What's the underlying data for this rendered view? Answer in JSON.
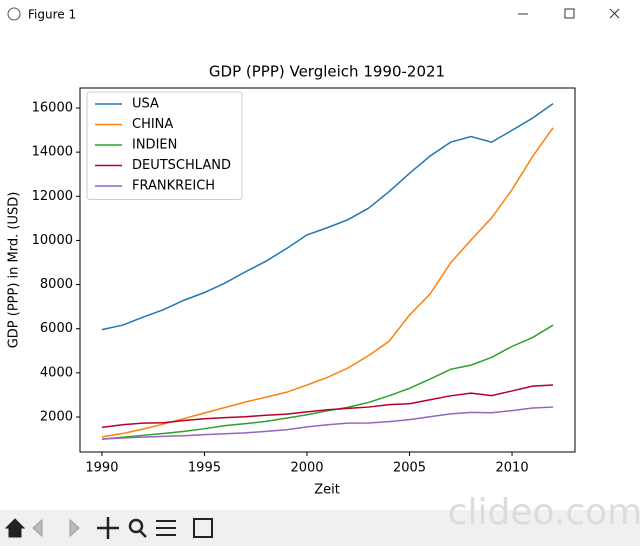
{
  "window": {
    "title": "Figure 1"
  },
  "watermark": "clideo.com",
  "chart_data": {
    "type": "line",
    "title": "GDP (PPP) Vergleich 1990-2021",
    "x_label": "Zeit",
    "y_label": "GDP (PPP) in Mrd. (USD)",
    "x": [
      1990,
      1991,
      1992,
      1993,
      1994,
      1995,
      1996,
      1997,
      1998,
      1999,
      2000,
      2001,
      2002,
      2003,
      2004,
      2005,
      2006,
      2007,
      2008,
      2009,
      2010,
      2011,
      2012
    ],
    "series": [
      {
        "name": "USA",
        "color": "#1f77b4",
        "values": [
          5960,
          6160,
          6520,
          6860,
          7290,
          7640,
          8070,
          8580,
          9060,
          9630,
          10250,
          10580,
          10940,
          11460,
          12210,
          13040,
          13820,
          14450,
          14710,
          14450,
          14990,
          15540,
          16200
        ]
      },
      {
        "name": "CHINA",
        "color": "#ff7f0e",
        "values": [
          1100,
          1250,
          1450,
          1680,
          1930,
          2180,
          2430,
          2680,
          2900,
          3120,
          3450,
          3800,
          4220,
          4780,
          5430,
          6620,
          7570,
          8980,
          10020,
          11020,
          12300,
          13800,
          15100
        ]
      },
      {
        "name": "INDIEN",
        "color": "#2ca02c",
        "values": [
          1000,
          1080,
          1170,
          1250,
          1350,
          1470,
          1610,
          1700,
          1800,
          1950,
          2100,
          2280,
          2440,
          2660,
          2960,
          3300,
          3720,
          4160,
          4350,
          4700,
          5200,
          5600,
          6160
        ]
      },
      {
        "name": "DEUTSCHLAND",
        "color": "#b8002a",
        "values": [
          1530,
          1650,
          1720,
          1740,
          1840,
          1920,
          1970,
          2010,
          2080,
          2130,
          2230,
          2330,
          2390,
          2450,
          2560,
          2600,
          2780,
          2960,
          3080,
          2970,
          3180,
          3400,
          3450
        ]
      },
      {
        "name": "FRANKREICH",
        "color": "#9467bd",
        "values": [
          1000,
          1050,
          1090,
          1120,
          1150,
          1200,
          1240,
          1280,
          1350,
          1420,
          1550,
          1650,
          1720,
          1730,
          1790,
          1880,
          2010,
          2140,
          2210,
          2190,
          2290,
          2410,
          2450
        ]
      }
    ],
    "xlim": [
      1988.93,
      2013.07
    ],
    "ylim": [
      414,
      16906
    ],
    "xticks": [
      1990,
      1995,
      2000,
      2005,
      2010
    ],
    "yticks": [
      2000,
      4000,
      6000,
      8000,
      10000,
      12000,
      14000,
      16000
    ],
    "legend": "upper left",
    "grid": false
  }
}
